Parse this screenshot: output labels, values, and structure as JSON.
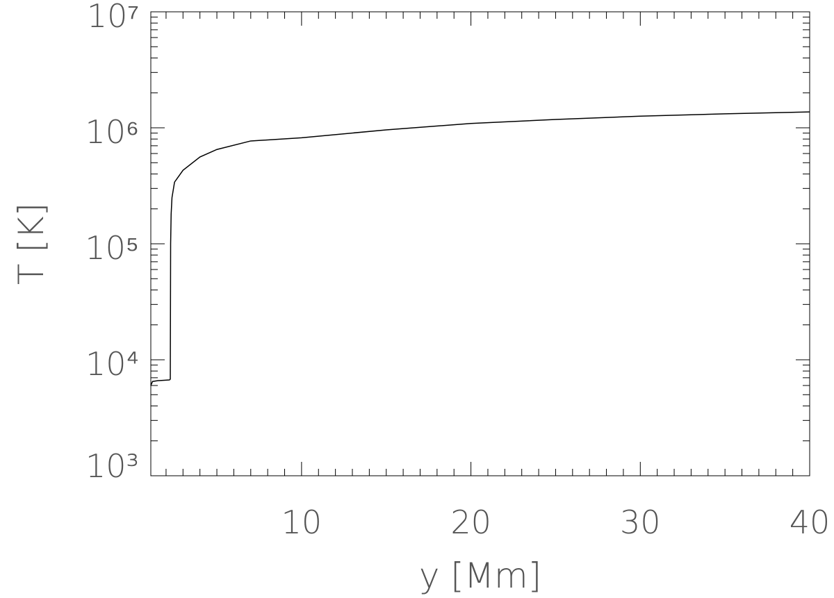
{
  "chart_data": {
    "type": "line",
    "xlabel": "y [Mm]",
    "ylabel": "T [K]",
    "ylog": true,
    "xlim": [
      1.1,
      40
    ],
    "ylim": [
      1000,
      10000000
    ],
    "xticks": [
      10,
      20,
      30,
      40
    ],
    "xminorticks": [
      2,
      3,
      4,
      5,
      6,
      7,
      8,
      9,
      11,
      12,
      13,
      14,
      15,
      16,
      17,
      18,
      19,
      21,
      22,
      23,
      24,
      25,
      26,
      27,
      28,
      29,
      31,
      32,
      33,
      34,
      35,
      36,
      37,
      38,
      39
    ],
    "yticks": [
      {
        "value": 1000,
        "label": "10³"
      },
      {
        "value": 10000,
        "label": "10⁴"
      },
      {
        "value": 100000,
        "label": "10⁵"
      },
      {
        "value": 1000000,
        "label": "10⁶"
      },
      {
        "value": 10000000,
        "label": "10⁷"
      }
    ],
    "yminorticks": [
      2000,
      3000,
      4000,
      5000,
      6000,
      7000,
      8000,
      9000,
      20000,
      30000,
      40000,
      50000,
      60000,
      70000,
      80000,
      90000,
      200000,
      300000,
      400000,
      500000,
      600000,
      700000,
      800000,
      900000,
      2000000,
      3000000,
      4000000,
      5000000,
      6000000,
      7000000,
      8000000,
      9000000
    ],
    "series": [
      {
        "color": "#000000",
        "x": [
          1.1,
          1.2,
          1.5,
          2.2,
          2.25,
          2.27,
          2.3,
          2.35,
          2.5,
          3,
          4,
          5,
          7,
          10,
          15,
          20,
          25,
          30,
          35,
          40
        ],
        "values": [
          6000,
          6500,
          6600,
          6700,
          6800,
          100000,
          180000,
          250000,
          340000,
          430000,
          560000,
          650000,
          770000,
          820000,
          960000,
          1090000,
          1180000,
          1260000,
          1320000,
          1370000
        ]
      }
    ]
  }
}
